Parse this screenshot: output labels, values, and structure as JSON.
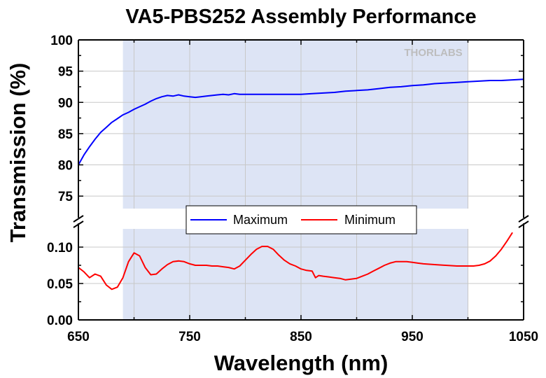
{
  "chart_data": {
    "type": "line",
    "title": "VA5-PBS252 Assembly Performance",
    "xlabel": "Wavelength (nm)",
    "ylabel": "Transmission (%)",
    "xlim": [
      650,
      1050
    ],
    "x_ticks": [
      "650",
      "750",
      "850",
      "950",
      "1050"
    ],
    "ylim_upper": [
      73,
      100
    ],
    "y_ticks_upper": [
      "75",
      "80",
      "85",
      "90",
      "95",
      "100"
    ],
    "ylim_lower": [
      0,
      0.125
    ],
    "y_ticks_lower": [
      "0.00",
      "0.05",
      "0.10"
    ],
    "axis_break": true,
    "grid": true,
    "shaded_region": {
      "x": [
        690,
        1000
      ],
      "color": "#dde4f5"
    },
    "legend": {
      "placement": "center",
      "entries": [
        "Maximum",
        "Minimum"
      ]
    },
    "watermark": "THORLABS",
    "series": [
      {
        "name": "Maximum",
        "color": "#0000ff",
        "panel": "upper",
        "x": [
          650,
          655,
          660,
          665,
          670,
          675,
          680,
          685,
          690,
          695,
          700,
          705,
          710,
          715,
          720,
          725,
          730,
          735,
          740,
          745,
          750,
          755,
          760,
          765,
          770,
          775,
          780,
          785,
          790,
          795,
          800,
          810,
          820,
          830,
          840,
          850,
          860,
          870,
          880,
          890,
          900,
          910,
          920,
          930,
          940,
          950,
          960,
          970,
          980,
          990,
          1000,
          1010,
          1020,
          1030,
          1040,
          1050
        ],
        "values": [
          80.0,
          81.6,
          82.9,
          84.1,
          85.2,
          86.0,
          86.8,
          87.4,
          88.0,
          88.4,
          88.9,
          89.3,
          89.7,
          90.2,
          90.6,
          90.9,
          91.1,
          91.0,
          91.2,
          91.0,
          90.9,
          90.8,
          90.9,
          91.0,
          91.1,
          91.2,
          91.3,
          91.2,
          91.4,
          91.3,
          91.3,
          91.3,
          91.3,
          91.3,
          91.3,
          91.3,
          91.4,
          91.5,
          91.6,
          91.8,
          91.9,
          92.0,
          92.2,
          92.4,
          92.5,
          92.7,
          92.8,
          93.0,
          93.1,
          93.2,
          93.3,
          93.4,
          93.5,
          93.5,
          93.6,
          93.7
        ]
      },
      {
        "name": "Minimum",
        "color": "#ff0000",
        "panel": "lower",
        "x": [
          650,
          655,
          660,
          665,
          670,
          675,
          680,
          685,
          690,
          695,
          700,
          705,
          710,
          715,
          720,
          725,
          730,
          735,
          740,
          745,
          750,
          755,
          760,
          765,
          770,
          775,
          780,
          785,
          790,
          795,
          800,
          805,
          810,
          815,
          820,
          825,
          830,
          835,
          840,
          845,
          850,
          855,
          860,
          863,
          866,
          870,
          875,
          880,
          885,
          890,
          895,
          900,
          905,
          910,
          915,
          920,
          925,
          930,
          935,
          940,
          945,
          950,
          955,
          960,
          970,
          980,
          990,
          1000,
          1005,
          1010,
          1015,
          1020,
          1025,
          1030,
          1035,
          1040
        ],
        "values": [
          0.072,
          0.066,
          0.058,
          0.063,
          0.06,
          0.048,
          0.042,
          0.045,
          0.058,
          0.08,
          0.092,
          0.088,
          0.072,
          0.062,
          0.063,
          0.07,
          0.076,
          0.08,
          0.081,
          0.08,
          0.077,
          0.075,
          0.075,
          0.075,
          0.074,
          0.074,
          0.073,
          0.072,
          0.07,
          0.074,
          0.082,
          0.09,
          0.097,
          0.101,
          0.101,
          0.097,
          0.089,
          0.082,
          0.077,
          0.074,
          0.07,
          0.068,
          0.067,
          0.058,
          0.061,
          0.06,
          0.059,
          0.058,
          0.057,
          0.055,
          0.056,
          0.057,
          0.06,
          0.063,
          0.067,
          0.071,
          0.075,
          0.078,
          0.08,
          0.08,
          0.08,
          0.079,
          0.078,
          0.077,
          0.076,
          0.075,
          0.074,
          0.074,
          0.074,
          0.075,
          0.077,
          0.081,
          0.088,
          0.097,
          0.108,
          0.12
        ]
      }
    ]
  }
}
